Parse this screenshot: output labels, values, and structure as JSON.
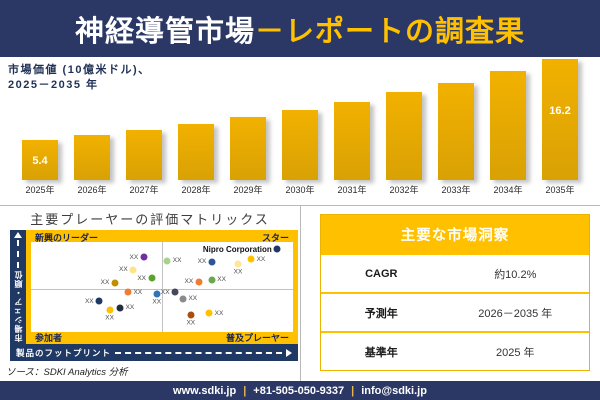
{
  "header": {
    "title_main": "神経導管市場",
    "title_accent": "－レポートの調査果"
  },
  "chart_data": [
    {
      "type": "bar",
      "title_line1": "市場価値 (10億米ドル)、",
      "title_line2": "2025－2035 年",
      "categories": [
        "2025年",
        "2026年",
        "2027年",
        "2028年",
        "2029年",
        "2030年",
        "2031年",
        "2032年",
        "2033年",
        "2034年",
        "2035年"
      ],
      "values": [
        5.4,
        6.0,
        6.7,
        7.5,
        8.4,
        9.4,
        10.4,
        11.7,
        13.0,
        14.5,
        16.2
      ],
      "shown_value_labels": [
        {
          "index": 0,
          "text": "5.4"
        },
        {
          "index": 10,
          "text": "16.2"
        }
      ],
      "ylim": [
        0,
        17
      ],
      "grid": false,
      "bar_color": "#E3A900"
    },
    {
      "type": "scatter",
      "title": "主要プレーヤーの評価マトリックス",
      "x_axis": "製品のフットプリント",
      "y_axis": "市場シェア・順位",
      "quadrant_labels": {
        "top_left": "新興のリーダー",
        "top_right": "スター",
        "bottom_left": "参加者",
        "bottom_right": "普及プレーヤー"
      },
      "points": [
        {
          "label": "XX",
          "x": 43,
          "y": 17,
          "color": "#7030A0",
          "label_side": "left"
        },
        {
          "label": "XX",
          "x": 39,
          "y": 31,
          "color": "#FFE385",
          "label_side": "left"
        },
        {
          "label": "XX",
          "x": 46,
          "y": 40,
          "color": "#5AA42C",
          "label_side": "left"
        },
        {
          "label": "XX",
          "x": 32,
          "y": 45,
          "color": "#BF8F00",
          "label_side": "left"
        },
        {
          "label": "Nipro Corporation",
          "x": 94,
          "y": 8,
          "color": "#1F3864",
          "label_side": "left",
          "emphasis": true
        },
        {
          "label": "XX",
          "x": 84,
          "y": 19,
          "color": "#FFC000",
          "label_side": "right"
        },
        {
          "label": "XX",
          "x": 79,
          "y": 24,
          "color": "#FFE699",
          "label_side": "below"
        },
        {
          "label": "XX",
          "x": 69,
          "y": 22,
          "color": "#2F5597",
          "label_side": "left"
        },
        {
          "label": "XX",
          "x": 52,
          "y": 21,
          "color": "#A9D18E",
          "label_side": "right"
        },
        {
          "label": "XX",
          "x": 64,
          "y": 44,
          "color": "#ED7D31",
          "label_side": "left"
        },
        {
          "label": "XX",
          "x": 69,
          "y": 42,
          "color": "#6AA84F",
          "label_side": "right"
        },
        {
          "label": "XX",
          "x": 37,
          "y": 56,
          "color": "#ED7D31",
          "label_side": "right"
        },
        {
          "label": "XX",
          "x": 48,
          "y": 58,
          "color": "#2E75B6",
          "label_side": "below"
        },
        {
          "label": "XX",
          "x": 26,
          "y": 66,
          "color": "#1F3864",
          "label_side": "left"
        },
        {
          "label": "XX",
          "x": 34,
          "y": 73,
          "color": "#262C3F",
          "label_side": "right"
        },
        {
          "label": "XX",
          "x": 30,
          "y": 76,
          "color": "#FFC000",
          "label_side": "below"
        },
        {
          "label": "XX",
          "x": 55,
          "y": 56,
          "color": "#44485A",
          "label_side": "left"
        },
        {
          "label": "XX",
          "x": 58,
          "y": 63,
          "color": "#8A8A8A",
          "label_side": "right"
        },
        {
          "label": "XX",
          "x": 61,
          "y": 81,
          "color": "#A84E0F",
          "label_side": "below"
        },
        {
          "label": "XX",
          "x": 68,
          "y": 79,
          "color": "#FFC000",
          "label_side": "right"
        }
      ]
    },
    {
      "type": "table",
      "title": "主要な市場洞察",
      "rows": [
        {
          "label": "CAGR",
          "value": "約10.2%"
        },
        {
          "label": "予測年",
          "value": "2026－2035 年"
        },
        {
          "label": "基準年",
          "value": "2025 年"
        }
      ]
    }
  ],
  "source_note": "ソース：SDKI Analytics 分析",
  "footer": {
    "items": [
      "www.sdki.jp",
      "+81-505-050-9337",
      "info@sdki.jp"
    ],
    "separator": "|"
  },
  "colors": {
    "navy": "#2B3866",
    "axis_navy": "#1F3864",
    "gold": "#FFC000",
    "bar_gold": "#E3A900"
  }
}
